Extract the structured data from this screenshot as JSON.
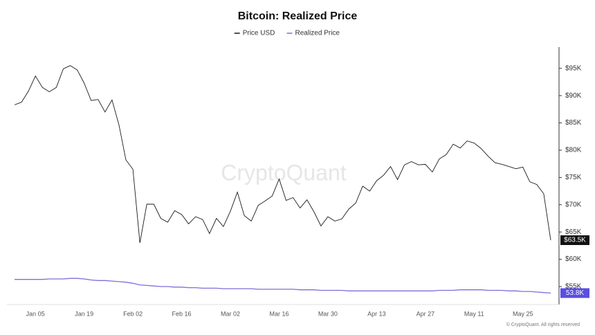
{
  "chart_data": {
    "type": "line",
    "title": "Bitcoin: Realized Price",
    "watermark": "CryptoQuant",
    "footer": "© CryptoQuant. All rights reserved",
    "categories": [
      null,
      null,
      null,
      "Jan 05",
      null,
      null,
      null,
      null,
      null,
      null,
      "Jan 19",
      null,
      null,
      null,
      null,
      null,
      null,
      "Feb 02",
      null,
      null,
      null,
      null,
      null,
      null,
      "Feb 16",
      null,
      null,
      null,
      null,
      null,
      null,
      "Mar 02",
      null,
      null,
      null,
      null,
      null,
      null,
      "Mar 16",
      null,
      null,
      null,
      null,
      null,
      null,
      "Mar 30",
      null,
      null,
      null,
      null,
      null,
      null,
      "Apr 13",
      null,
      null,
      null,
      null,
      null,
      null,
      "Apr 27",
      null,
      null,
      null,
      null,
      null,
      null,
      "May 11",
      null,
      null,
      null,
      null,
      null,
      null,
      "May 25",
      null,
      null,
      null,
      null
    ],
    "series": [
      {
        "name": "Price USD",
        "color": "#1a1a1a",
        "badge_color": "#111111",
        "values": [
          88300,
          88800,
          90800,
          93600,
          91500,
          90700,
          91500,
          94900,
          95500,
          94700,
          92300,
          89100,
          89300,
          87000,
          89200,
          84600,
          78200,
          76500,
          63000,
          70100,
          70100,
          67500,
          66800,
          68900,
          68200,
          66500,
          67800,
          67300,
          64700,
          67500,
          66000,
          68800,
          72300,
          68000,
          67000,
          69900,
          70700,
          71600,
          74700,
          70800,
          71300,
          69400,
          70900,
          68700,
          66100,
          67800,
          67000,
          67400,
          69200,
          70300,
          73400,
          72500,
          74400,
          75400,
          77000,
          74600,
          77300,
          77900,
          77300,
          77400,
          76000,
          78400,
          79200,
          81100,
          80400,
          81700,
          81300,
          80300,
          78900,
          77700,
          77400,
          77000,
          76600,
          76900,
          74200,
          73700,
          72000,
          63500
        ],
        "value_labels": [
          null,
          null,
          null,
          null,
          null,
          null,
          null,
          null,
          null,
          null,
          null,
          null,
          null,
          null,
          null,
          null,
          null,
          null,
          null,
          null,
          null,
          null,
          null,
          null,
          null,
          null,
          null,
          null,
          null,
          null,
          null,
          null,
          null,
          null,
          null,
          null,
          null,
          null,
          null,
          null,
          null,
          null,
          null,
          null,
          null,
          null,
          null,
          null,
          null,
          null,
          null,
          null,
          null,
          null,
          null,
          null,
          null,
          null,
          null,
          null,
          null,
          null,
          null,
          null,
          null,
          null,
          null,
          null,
          null,
          null,
          null,
          null,
          null,
          null,
          null,
          null,
          null,
          "$63.5K"
        ]
      },
      {
        "name": "Realized Price",
        "color": "#7b6fd9",
        "badge_color": "#5a4ee0",
        "values": [
          56300,
          56300,
          56300,
          56300,
          56300,
          56400,
          56400,
          56400,
          56500,
          56500,
          56400,
          56200,
          56100,
          56100,
          56000,
          55900,
          55800,
          55600,
          55300,
          55200,
          55100,
          55000,
          55000,
          54900,
          54900,
          54800,
          54800,
          54700,
          54700,
          54700,
          54600,
          54600,
          54600,
          54600,
          54600,
          54500,
          54500,
          54500,
          54500,
          54500,
          54500,
          54400,
          54400,
          54400,
          54300,
          54300,
          54300,
          54300,
          54200,
          54200,
          54200,
          54200,
          54200,
          54200,
          54200,
          54200,
          54200,
          54200,
          54200,
          54200,
          54200,
          54300,
          54300,
          54300,
          54400,
          54400,
          54400,
          54400,
          54300,
          54300,
          54300,
          54200,
          54200,
          54100,
          54100,
          54000,
          53900,
          53800
        ],
        "value_labels": [
          null,
          null,
          null,
          null,
          null,
          null,
          null,
          null,
          null,
          null,
          null,
          null,
          null,
          null,
          null,
          null,
          null,
          null,
          null,
          null,
          null,
          null,
          null,
          null,
          null,
          null,
          null,
          null,
          null,
          null,
          null,
          null,
          null,
          null,
          null,
          null,
          null,
          null,
          null,
          null,
          null,
          null,
          null,
          null,
          null,
          null,
          null,
          null,
          null,
          null,
          null,
          null,
          null,
          null,
          null,
          null,
          null,
          null,
          null,
          null,
          null,
          null,
          null,
          null,
          null,
          null,
          null,
          null,
          null,
          null,
          null,
          null,
          null,
          null,
          null,
          null,
          null,
          "53.8K"
        ]
      }
    ],
    "ylim": [
      51700,
      98900
    ],
    "yticks": [
      {
        "value": 55000,
        "label": "$55K"
      },
      {
        "value": 60000,
        "label": "$60K"
      },
      {
        "value": 65000,
        "label": "$65K"
      },
      {
        "value": 70000,
        "label": "$70K"
      },
      {
        "value": 75000,
        "label": "$75K"
      },
      {
        "value": 80000,
        "label": "$80K"
      },
      {
        "value": 85000,
        "label": "$85K"
      },
      {
        "value": 90000,
        "label": "$90K"
      },
      {
        "value": 95000,
        "label": "$95K"
      }
    ],
    "y_axis_side": "right",
    "legend": "top"
  }
}
